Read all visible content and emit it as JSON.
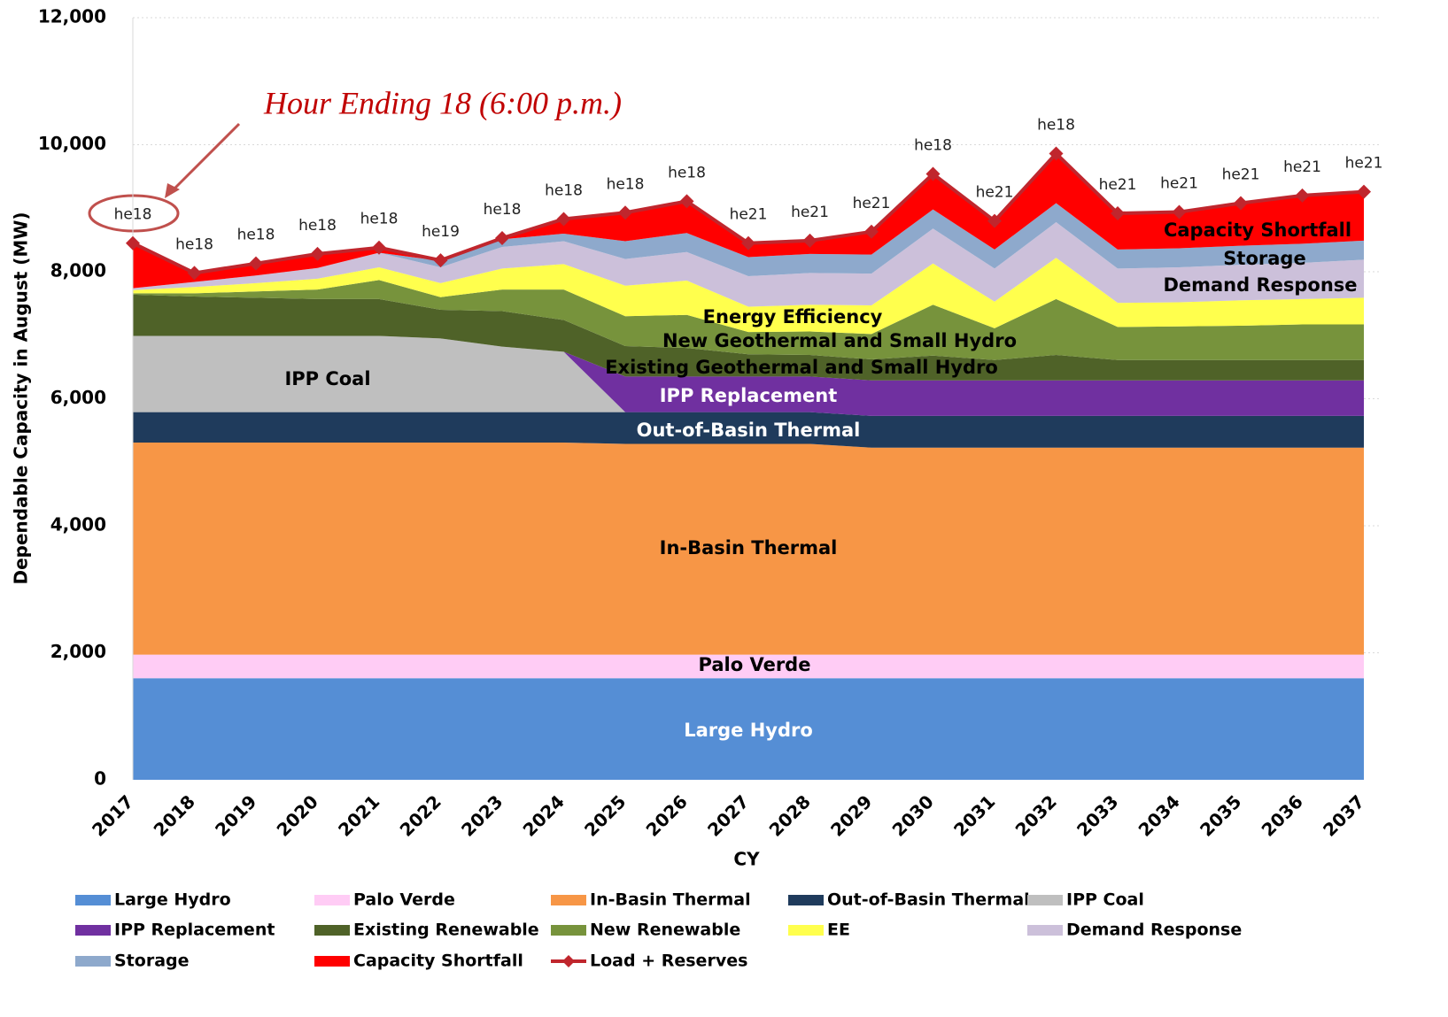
{
  "chart_data": {
    "type": "stacked_area",
    "y_label": "Dependable Capacity in August (MW)",
    "x_label": "CY",
    "annotation": "Hour Ending 18 (6:00 p.m.)",
    "categories": [
      "2017",
      "2018",
      "2019",
      "2020",
      "2021",
      "2022",
      "2023",
      "2024",
      "2025",
      "2026",
      "2027",
      "2028",
      "2029",
      "2030",
      "2031",
      "2032",
      "2033",
      "2034",
      "2035",
      "2036",
      "2037"
    ],
    "ylim": [
      0,
      12000
    ],
    "yticks": [
      0,
      {
        "value": 2000,
        "label": "2,000"
      },
      {
        "value": 4000,
        "label": "4,000"
      },
      {
        "value": 6000,
        "label": "6,000"
      },
      {
        "value": 8000,
        "label": "8,000"
      },
      {
        "value": 10000,
        "label": "10,000"
      },
      {
        "value": 12000,
        "label": "12,000"
      }
    ],
    "grid": true,
    "series": [
      {
        "name": "Large Hydro",
        "color": "#558ed5",
        "values": [
          1600,
          1600,
          1600,
          1600,
          1600,
          1600,
          1600,
          1600,
          1600,
          1600,
          1600,
          1600,
          1600,
          1600,
          1600,
          1600,
          1600,
          1600,
          1600,
          1600,
          1600
        ]
      },
      {
        "name": "Palo Verde",
        "color": "#ffccf5",
        "values": [
          370,
          370,
          370,
          370,
          370,
          370,
          370,
          370,
          370,
          370,
          370,
          370,
          370,
          370,
          370,
          370,
          370,
          370,
          370,
          370,
          370
        ]
      },
      {
        "name": "In-Basin Thermal",
        "color": "#f79646",
        "values": [
          3340,
          3340,
          3340,
          3340,
          3340,
          3340,
          3340,
          3340,
          3320,
          3320,
          3320,
          3320,
          3260,
          3260,
          3260,
          3260,
          3260,
          3260,
          3260,
          3260,
          3260
        ]
      },
      {
        "name": "Out-of-Basin Thermal",
        "color": "#1f3b5c",
        "values": [
          480,
          480,
          480,
          480,
          480,
          480,
          480,
          480,
          500,
          500,
          500,
          500,
          500,
          500,
          500,
          500,
          500,
          500,
          500,
          500,
          500
        ]
      },
      {
        "name": "IPP Coal",
        "color": "#bfbfbf",
        "values": [
          1200,
          1200,
          1200,
          1200,
          1200,
          1160,
          1030,
          950,
          0,
          0,
          0,
          0,
          0,
          0,
          0,
          0,
          0,
          0,
          0,
          0,
          0
        ]
      },
      {
        "name": "IPP Replacement",
        "color": "#7030a0",
        "values": [
          0,
          0,
          0,
          0,
          0,
          0,
          0,
          0,
          560,
          560,
          560,
          560,
          560,
          560,
          560,
          560,
          560,
          560,
          560,
          560,
          560
        ]
      },
      {
        "name": "Existing Renewable",
        "color": "#4f6228",
        "values": [
          650,
          620,
          600,
          580,
          580,
          450,
          560,
          500,
          480,
          450,
          350,
          340,
          330,
          390,
          320,
          400,
          320,
          320,
          320,
          320,
          320
        ]
      },
      {
        "name": "New Renewable",
        "color": "#77933c",
        "values": [
          20,
          50,
          100,
          150,
          300,
          200,
          340,
          480,
          470,
          520,
          350,
          370,
          400,
          800,
          500,
          880,
          520,
          530,
          540,
          560,
          560
        ]
      },
      {
        "name": "EE",
        "color": "#ffff4d",
        "values": [
          50,
          100,
          130,
          170,
          200,
          220,
          330,
          400,
          480,
          540,
          400,
          420,
          450,
          650,
          420,
          650,
          380,
          380,
          400,
          400,
          420
        ]
      },
      {
        "name": "Demand Response",
        "color": "#ccc0da",
        "values": [
          30,
          80,
          120,
          170,
          230,
          250,
          340,
          360,
          420,
          450,
          480,
          500,
          500,
          550,
          520,
          560,
          540,
          550,
          560,
          570,
          600
        ]
      },
      {
        "name": "Storage",
        "color": "#8ea9cc",
        "values": [
          0,
          0,
          0,
          0,
          0,
          100,
          120,
          120,
          280,
          300,
          300,
          300,
          300,
          300,
          300,
          300,
          300,
          300,
          300,
          300,
          300
        ]
      },
      {
        "name": "Capacity Shortfall",
        "color": "#ff0000",
        "values": [
          710,
          140,
          190,
          220,
          80,
          0,
          0,
          230,
          450,
          500,
          220,
          210,
          360,
          560,
          450,
          780,
          570,
          570,
          670,
          760,
          770
        ]
      }
    ],
    "line": {
      "name": "Load + Reserves",
      "color": "#c0262d",
      "values": [
        8450,
        7980,
        8130,
        8280,
        8380,
        8180,
        8530,
        8830,
        8930,
        9110,
        8450,
        8490,
        8630,
        9540,
        8800,
        9860,
        8920,
        8940,
        9080,
        9200,
        9260
      ],
      "point_labels": [
        "he18",
        "he18",
        "he18",
        "he18",
        "he18",
        "he19",
        "he18",
        "he18",
        "he18",
        "he18",
        "he21",
        "he21",
        "he21",
        "he18",
        "he21",
        "he18",
        "he21",
        "he21",
        "he21",
        "he21",
        "he21"
      ]
    },
    "area_labels": [
      "Large Hydro",
      "Palo Verde",
      "In-Basin Thermal",
      "Out-of-Basin Thermal",
      "IPP Coal",
      "IPP Replacement",
      "Existing Geothermal and Small Hydro",
      "New Geothermal and Small Hydro",
      "Energy Efficiency",
      "Demand Response",
      "Storage",
      "Capacity Shortfall"
    ]
  }
}
